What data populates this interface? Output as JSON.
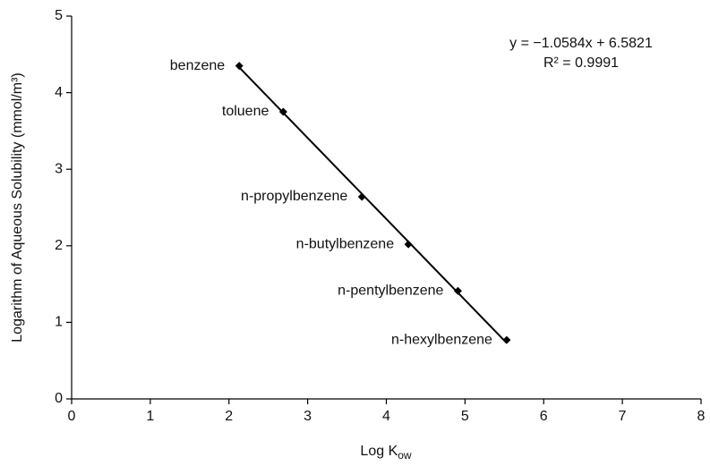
{
  "chart_data": {
    "type": "scatter",
    "xlabel": {
      "text": "Log K",
      "sub": "ow"
    },
    "ylabel": "Logarithm of Aqueous Solubility (mmol/m³)",
    "annotations": [
      "y = −1.0584x + 6.5821",
      "R² = 0.9991"
    ],
    "xlim": [
      0,
      8
    ],
    "xticks": [
      0,
      1,
      2,
      3,
      4,
      5,
      6,
      7,
      8
    ],
    "ylim": [
      0,
      5
    ],
    "yticks": [
      0,
      1,
      2,
      3,
      4,
      5
    ],
    "color": "#000000",
    "series": [
      {
        "labels": [
          "benzene",
          "toluene",
          "n-propylbenzene",
          "n-butylbenzene",
          "n-pentylbenzene",
          "n-hexylbenzene"
        ],
        "x": [
          2.13,
          2.69,
          3.69,
          4.28,
          4.91,
          5.53
        ],
        "values": [
          4.35,
          3.75,
          2.64,
          2.02,
          1.41,
          0.77
        ]
      }
    ],
    "trendline": {
      "x": [
        2.13,
        5.53
      ],
      "y": [
        4.33,
        0.73
      ]
    }
  }
}
